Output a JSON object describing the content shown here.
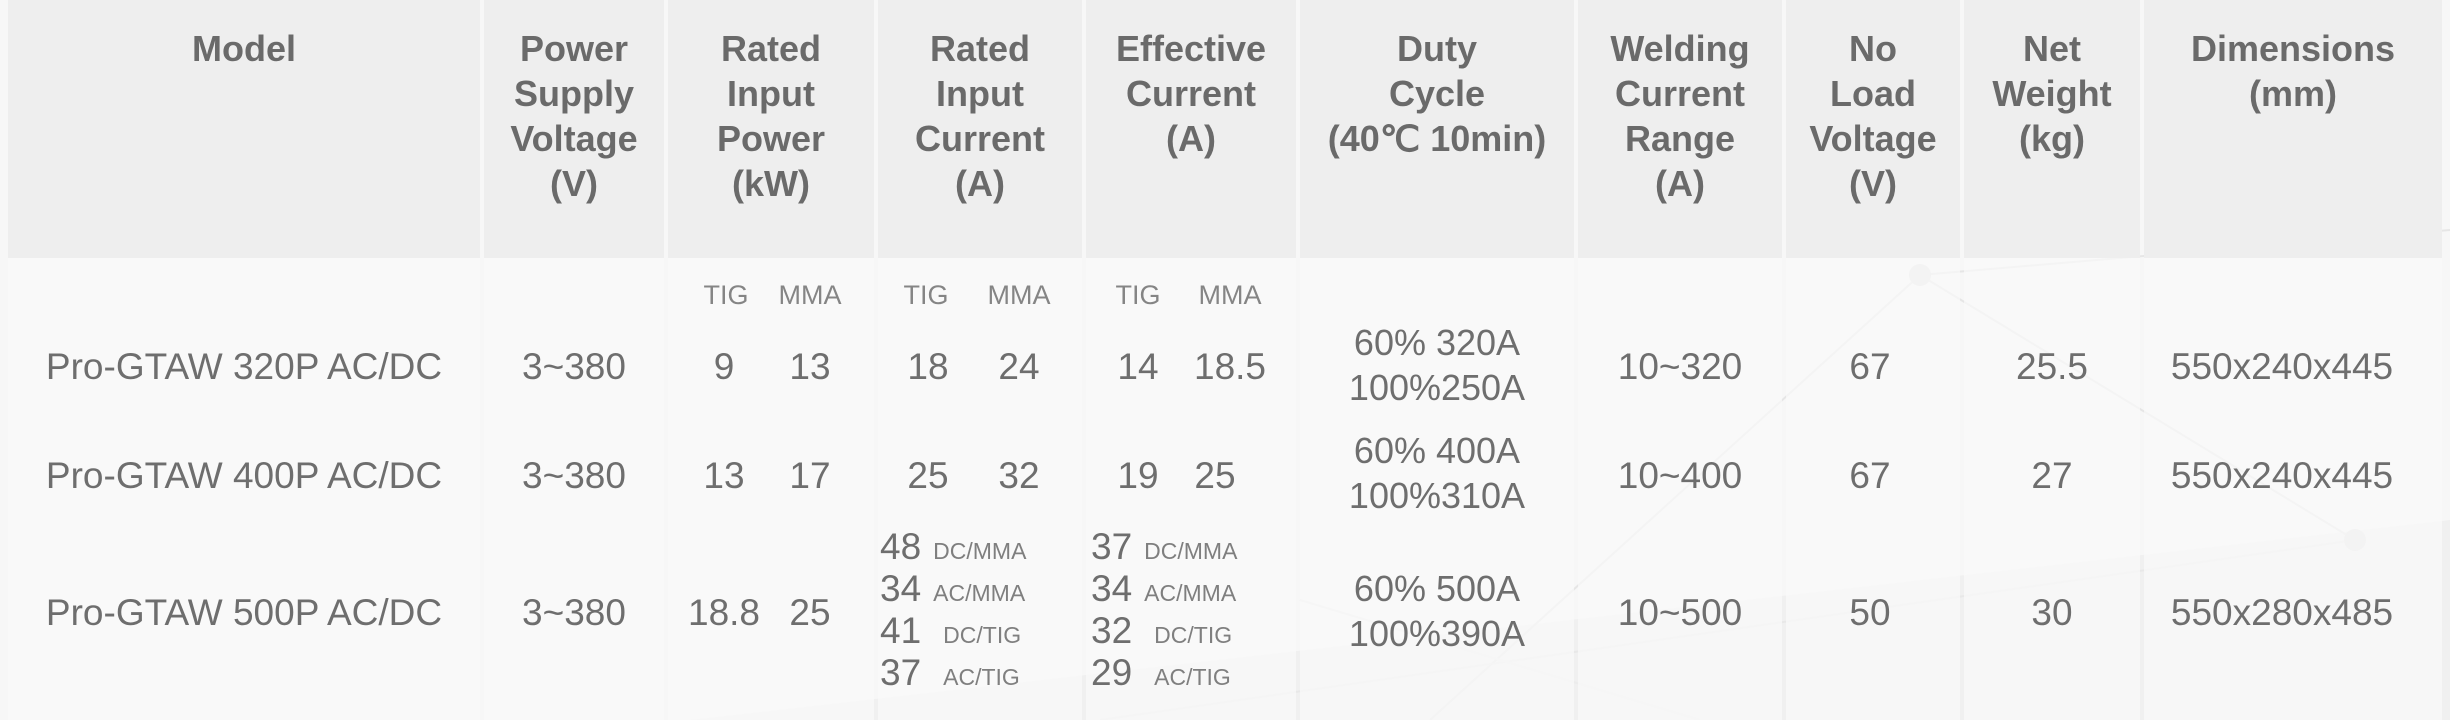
{
  "headers": {
    "model": [
      "Model"
    ],
    "supply": [
      "Power",
      "Supply",
      "Voltage",
      "(V)"
    ],
    "power": [
      "Rated",
      "Input",
      "Power",
      "(kW)"
    ],
    "incur": [
      "Rated",
      "Input",
      "Current",
      "(A)"
    ],
    "effcur": [
      "Effective",
      "Current",
      "(A)"
    ],
    "duty": [
      "Duty",
      "Cycle",
      "(40℃ 10min)"
    ],
    "range": [
      "Welding",
      "Current",
      "Range",
      "(A)"
    ],
    "noload": [
      "No",
      "Load",
      "Voltage",
      "(V)"
    ],
    "weight": [
      "Net",
      "Weight",
      "(kg)"
    ],
    "dims": [
      "Dimensions",
      "(mm)"
    ]
  },
  "subheads": {
    "tig": "TIG",
    "mma": "MMA"
  },
  "rows": [
    {
      "model": "Pro-GTAW 320P AC/DC",
      "supply": "3~380",
      "power_tig": "9",
      "power_mma": "13",
      "incur_tig": "18",
      "incur_mma": "24",
      "eff_tig": "14",
      "eff_mma": "18.5",
      "duty": [
        "60% 320A",
        "100%250A"
      ],
      "range": "10~320",
      "noload": "67",
      "weight": "25.5",
      "dims": "550x240x445"
    },
    {
      "model": "Pro-GTAW 400P AC/DC",
      "supply": "3~380",
      "power_tig": "13",
      "power_mma": "17",
      "incur_tig": "25",
      "incur_mma": "32",
      "eff_tig": "19",
      "eff_mma": "25",
      "duty": [
        "60% 400A",
        "100%310A"
      ],
      "range": "10~400",
      "noload": "67",
      "weight": "27",
      "dims": "550x240x445"
    },
    {
      "model": "Pro-GTAW 500P AC/DC",
      "supply": "3~380",
      "power_tig": "18.8",
      "power_mma": "25",
      "incur": [
        {
          "v": "48",
          "m": "DC/MMA"
        },
        {
          "v": "34",
          "m": "AC/MMA"
        },
        {
          "v": "41",
          "m": "DC/TIG"
        },
        {
          "v": "37",
          "m": "AC/TIG"
        }
      ],
      "eff": [
        {
          "v": "37",
          "m": "DC/MMA"
        },
        {
          "v": "34",
          "m": "AC/MMA"
        },
        {
          "v": "32",
          "m": "DC/TIG"
        },
        {
          "v": "29",
          "m": "AC/TIG"
        }
      ],
      "duty": [
        "60% 500A",
        "100%390A"
      ],
      "range": "10~500",
      "noload": "50",
      "weight": "30",
      "dims": "550x280x485"
    }
  ]
}
